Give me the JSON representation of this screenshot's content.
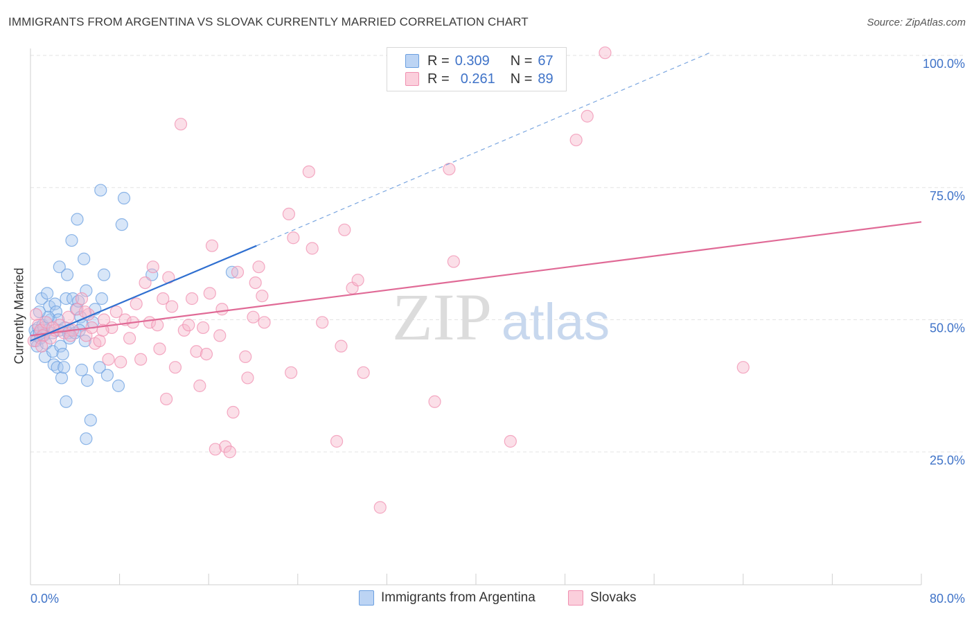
{
  "header": {
    "title": "IMMIGRANTS FROM ARGENTINA VS SLOVAK CURRENTLY MARRIED CORRELATION CHART",
    "source": "Source: ZipAtlas.com"
  },
  "watermark": {
    "zip": "ZIP",
    "atlas": "atlas"
  },
  "legend": {
    "rows": [
      {
        "r_label": "R =",
        "r_value": "0.309",
        "n_label": "N =",
        "n_value": "67",
        "color": "#a9c8f0"
      },
      {
        "r_label": "R =",
        "r_value": "0.261",
        "n_label": "N =",
        "n_value": "89",
        "color": "#f7b8cc"
      }
    ],
    "bottom": [
      {
        "label": "Immigrants from Argentina",
        "color": "#a9c8f0"
      },
      {
        "label": "Slovaks",
        "color": "#f7b8cc"
      }
    ]
  },
  "chart_data": {
    "type": "scatter",
    "title": "IMMIGRANTS FROM ARGENTINA VS SLOVAK CURRENTLY MARRIED CORRELATION CHART",
    "xlabel": "",
    "ylabel": "Currently Married",
    "xlim": [
      0,
      80
    ],
    "ylim": [
      0,
      103
    ],
    "x_tick_labels": [
      {
        "value": 0,
        "label": "0.0%"
      },
      {
        "value": 80,
        "label": "80.0%"
      }
    ],
    "y_tick_labels": [
      {
        "value": 25,
        "label": "25.0%"
      },
      {
        "value": 50,
        "label": "50.0%"
      },
      {
        "value": 75,
        "label": "75.0%"
      },
      {
        "value": 100,
        "label": "100.0%"
      }
    ],
    "x_minor_ticks": [
      0,
      8,
      16,
      24,
      32,
      40,
      48,
      56,
      64,
      72,
      80
    ],
    "grid": true,
    "series": [
      {
        "name": "Immigrants from Argentina",
        "color": "#6a9fe0",
        "fill": "#a9c8f0",
        "trend": {
          "x": [
            0,
            20.3
          ],
          "y": [
            46,
            64
          ],
          "dashed_to": {
            "x": 61,
            "y": 100.5
          },
          "color": "#2f6fd0"
        },
        "points": [
          [
            0.4,
            48.0
          ],
          [
            0.5,
            47.0
          ],
          [
            0.5,
            46.0
          ],
          [
            0.6,
            45.0
          ],
          [
            0.7,
            48.5
          ],
          [
            0.8,
            47.5
          ],
          [
            0.9,
            46.5
          ],
          [
            1.0,
            54.0
          ],
          [
            1.1,
            49.0
          ],
          [
            1.2,
            47.0
          ],
          [
            1.3,
            43.0
          ],
          [
            1.4,
            45.5
          ],
          [
            1.5,
            48.0
          ],
          [
            1.5,
            55.0
          ],
          [
            1.7,
            52.5
          ],
          [
            1.8,
            50.0
          ],
          [
            2.0,
            44.0
          ],
          [
            2.0,
            47.5
          ],
          [
            2.1,
            41.5
          ],
          [
            2.2,
            53.0
          ],
          [
            2.3,
            51.5
          ],
          [
            2.4,
            41.0
          ],
          [
            2.5,
            50.0
          ],
          [
            2.6,
            48.0
          ],
          [
            2.7,
            45.0
          ],
          [
            2.6,
            60.0
          ],
          [
            2.8,
            39.0
          ],
          [
            3.0,
            41.0
          ],
          [
            3.1,
            48.5
          ],
          [
            3.2,
            54.0
          ],
          [
            3.2,
            34.5
          ],
          [
            3.3,
            58.5
          ],
          [
            3.4,
            47.5
          ],
          [
            3.5,
            48.0
          ],
          [
            3.5,
            46.5
          ],
          [
            3.7,
            65.0
          ],
          [
            3.8,
            54.0
          ],
          [
            4.0,
            47.5
          ],
          [
            4.1,
            52.0
          ],
          [
            4.2,
            69.0
          ],
          [
            4.3,
            53.5
          ],
          [
            4.5,
            50.5
          ],
          [
            4.6,
            40.5
          ],
          [
            4.7,
            49.0
          ],
          [
            4.8,
            61.5
          ],
          [
            4.9,
            46.0
          ],
          [
            5.0,
            55.5
          ],
          [
            5.0,
            27.5
          ],
          [
            5.1,
            38.5
          ],
          [
            5.4,
            31.0
          ],
          [
            5.6,
            49.5
          ],
          [
            5.8,
            52.0
          ],
          [
            6.2,
            41.0
          ],
          [
            6.3,
            74.5
          ],
          [
            6.4,
            54.0
          ],
          [
            6.6,
            58.5
          ],
          [
            6.9,
            39.5
          ],
          [
            7.9,
            37.5
          ],
          [
            8.2,
            68.0
          ],
          [
            8.4,
            73.0
          ],
          [
            10.9,
            58.5
          ],
          [
            18.1,
            59.0
          ],
          [
            1.2,
            48.5
          ],
          [
            1.6,
            50.5
          ],
          [
            2.9,
            43.5
          ],
          [
            0.8,
            51.5
          ],
          [
            4.4,
            48.0
          ]
        ]
      },
      {
        "name": "Slovaks",
        "color": "#f08fb0",
        "fill": "#f7b8cc",
        "trend": {
          "x": [
            0,
            80
          ],
          "y": [
            47,
            68.5
          ],
          "color": "#e06a96"
        },
        "points": [
          [
            0.3,
            46.0
          ],
          [
            0.5,
            51.0
          ],
          [
            0.7,
            49.0
          ],
          [
            0.9,
            48.0
          ],
          [
            1.1,
            47.0
          ],
          [
            1.4,
            49.5
          ],
          [
            1.8,
            46.5
          ],
          [
            2.2,
            48.0
          ],
          [
            2.6,
            49.0
          ],
          [
            3.0,
            47.5
          ],
          [
            3.4,
            50.5
          ],
          [
            3.8,
            48.0
          ],
          [
            4.2,
            52.0
          ],
          [
            4.6,
            54.0
          ],
          [
            5.0,
            47.0
          ],
          [
            5.2,
            51.0
          ],
          [
            5.5,
            48.5
          ],
          [
            5.8,
            45.5
          ],
          [
            6.2,
            46.0
          ],
          [
            6.6,
            50.0
          ],
          [
            7.0,
            42.5
          ],
          [
            7.3,
            48.5
          ],
          [
            7.7,
            51.5
          ],
          [
            8.1,
            42.0
          ],
          [
            8.5,
            50.0
          ],
          [
            8.9,
            46.5
          ],
          [
            9.2,
            49.5
          ],
          [
            9.5,
            53.0
          ],
          [
            9.9,
            42.5
          ],
          [
            10.3,
            57.0
          ],
          [
            10.7,
            49.5
          ],
          [
            11.0,
            60.0
          ],
          [
            11.4,
            49.0
          ],
          [
            11.6,
            44.5
          ],
          [
            11.9,
            54.0
          ],
          [
            12.2,
            35.0
          ],
          [
            12.4,
            58.0
          ],
          [
            12.7,
            52.5
          ],
          [
            13.0,
            41.0
          ],
          [
            13.5,
            87.0
          ],
          [
            13.8,
            48.0
          ],
          [
            14.2,
            49.0
          ],
          [
            14.5,
            54.0
          ],
          [
            14.9,
            44.0
          ],
          [
            15.2,
            37.5
          ],
          [
            15.5,
            48.5
          ],
          [
            15.8,
            43.5
          ],
          [
            16.1,
            55.0
          ],
          [
            16.3,
            64.0
          ],
          [
            16.6,
            25.5
          ],
          [
            17.0,
            47.0
          ],
          [
            17.2,
            52.0
          ],
          [
            17.5,
            26.0
          ],
          [
            17.9,
            25.0
          ],
          [
            18.2,
            32.5
          ],
          [
            18.6,
            59.0
          ],
          [
            19.3,
            43.0
          ],
          [
            19.5,
            39.0
          ],
          [
            20.0,
            50.5
          ],
          [
            20.2,
            57.0
          ],
          [
            20.5,
            60.0
          ],
          [
            20.8,
            54.5
          ],
          [
            21.0,
            49.5
          ],
          [
            23.2,
            70.0
          ],
          [
            23.6,
            65.5
          ],
          [
            23.4,
            40.0
          ],
          [
            25.0,
            78.0
          ],
          [
            25.3,
            63.5
          ],
          [
            26.2,
            49.5
          ],
          [
            27.5,
            27.0
          ],
          [
            27.9,
            45.0
          ],
          [
            28.2,
            67.0
          ],
          [
            28.9,
            56.0
          ],
          [
            29.4,
            57.5
          ],
          [
            29.9,
            40.0
          ],
          [
            31.4,
            14.5
          ],
          [
            36.3,
            34.5
          ],
          [
            37.6,
            78.5
          ],
          [
            38.0,
            61.0
          ],
          [
            43.1,
            27.0
          ],
          [
            49.0,
            84.0
          ],
          [
            50.0,
            88.5
          ],
          [
            51.6,
            100.5
          ],
          [
            64.0,
            41.0
          ],
          [
            2.0,
            48.5
          ],
          [
            1.0,
            45.0
          ],
          [
            6.5,
            48.0
          ],
          [
            3.6,
            47.0
          ],
          [
            4.9,
            51.5
          ]
        ]
      }
    ]
  }
}
